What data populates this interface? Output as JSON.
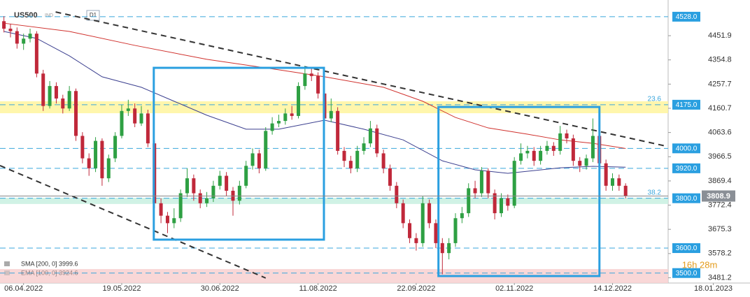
{
  "header": {
    "symbol": "US500",
    "market": "IND",
    "timeframe": "D1",
    "timer": "16h 28m"
  },
  "chart_data": {
    "type": "candlestick",
    "xlim": [
      -0.6,
      101.5
    ],
    "ylim": [
      3460,
      4595
    ],
    "xticks": [
      {
        "value": 3,
        "label": "06.04.2022"
      },
      {
        "value": 18,
        "label": "19.05.2022"
      },
      {
        "value": 33,
        "label": "30.06.2022"
      },
      {
        "value": 48,
        "label": "11.08.2022"
      },
      {
        "value": 63,
        "label": "22.09.2022"
      },
      {
        "value": 78,
        "label": "02.11.2022"
      },
      {
        "value": 93,
        "label": "14.12.2022"
      },
      {
        "value": 108.4,
        "label": "18.01.2023"
      }
    ],
    "yticks": [
      4451.9,
      4354.8,
      4257.7,
      4160.7,
      4063.6,
      3966.5,
      3869.4,
      3772.4,
      3675.3,
      3578.2,
      3481.2
    ],
    "up_color": "#2ea043",
    "down_color": "#c0283a",
    "open": [
      4510,
      4480,
      4470,
      4420,
      4440,
      4460,
      4300,
      4170,
      4250,
      4200,
      4160,
      4230,
      4050,
      3960,
      3920,
      4030,
      3880,
      3960,
      4050,
      4150,
      4160,
      4100,
      4140,
      4020,
      3780,
      3730,
      3700,
      3720,
      3820,
      3880,
      3820,
      3780,
      3800,
      3850,
      3890,
      3830,
      3790,
      3850,
      3930,
      3980,
      3920,
      4070,
      4100,
      4110,
      4140,
      4130,
      4250,
      4300,
      4290,
      4220,
      4120,
      4150,
      3990,
      3950,
      3920,
      3990,
      4020,
      4080,
      3980,
      3920,
      3850,
      3780,
      3700,
      3640,
      3620,
      3780,
      3700,
      3620,
      3580,
      3620,
      3720,
      3740,
      3840,
      3820,
      3910,
      3820,
      3740,
      3800,
      3770,
      3950,
      3980,
      3990,
      3950,
      3990,
      4010,
      3990,
      4060,
      4040,
      3950,
      3930,
      3960,
      4050,
      3940,
      3850,
      3880,
      3850
    ],
    "high": [
      4530,
      4500,
      4485,
      4460,
      4480,
      4470,
      4315,
      4270,
      4265,
      4215,
      4250,
      4240,
      4065,
      3980,
      4045,
      4040,
      3975,
      4065,
      4175,
      4195,
      4180,
      4170,
      4155,
      4030,
      3800,
      3745,
      3760,
      3835,
      3920,
      3895,
      3835,
      3825,
      3870,
      3910,
      3905,
      3845,
      3870,
      3950,
      4000,
      3995,
      4085,
      4125,
      4135,
      4160,
      4170,
      4265,
      4330,
      4320,
      4305,
      4235,
      4200,
      4165,
      4005,
      3970,
      4010,
      4045,
      4110,
      4095,
      3995,
      3935,
      3865,
      3795,
      3715,
      3660,
      3810,
      3795,
      3715,
      3640,
      3640,
      3740,
      3765,
      3860,
      3870,
      3925,
      3920,
      3835,
      3820,
      3815,
      3965,
      4020,
      4010,
      4005,
      4010,
      4030,
      4025,
      4090,
      4075,
      4055,
      3965,
      3975,
      4120,
      4065,
      3955,
      3900,
      3895,
      3860
    ],
    "low": [
      4465,
      4445,
      4400,
      4395,
      4425,
      4285,
      4150,
      4160,
      4180,
      4140,
      4150,
      4030,
      3940,
      3890,
      3905,
      3850,
      3865,
      3945,
      4040,
      4130,
      4085,
      4090,
      4005,
      3760,
      3700,
      3660,
      3680,
      3705,
      3805,
      3790,
      3760,
      3765,
      3785,
      3835,
      3810,
      3730,
      3775,
      3840,
      3915,
      3900,
      3910,
      4055,
      4085,
      4095,
      4115,
      4120,
      4235,
      4270,
      4200,
      4100,
      4105,
      3975,
      3925,
      3900,
      3905,
      3975,
      4005,
      3965,
      3900,
      3830,
      3760,
      3680,
      3620,
      3590,
      3605,
      3680,
      3600,
      3495,
      3555,
      3605,
      3700,
      3725,
      3800,
      3805,
      3800,
      3715,
      3725,
      3750,
      3760,
      3935,
      3960,
      3930,
      3935,
      3975,
      3970,
      3975,
      4020,
      3930,
      3905,
      3915,
      3945,
      3920,
      3830,
      3830,
      3830,
      3800
    ],
    "close": [
      4480,
      4470,
      4420,
      4440,
      4460,
      4300,
      4170,
      4250,
      4200,
      4160,
      4230,
      4050,
      3960,
      3920,
      4030,
      3880,
      3960,
      4050,
      4150,
      4160,
      4100,
      4140,
      4020,
      3780,
      3730,
      3700,
      3720,
      3820,
      3880,
      3820,
      3780,
      3800,
      3850,
      3890,
      3830,
      3790,
      3850,
      3930,
      3980,
      3920,
      4070,
      4100,
      4110,
      4140,
      4130,
      4250,
      4300,
      4290,
      4220,
      4120,
      4150,
      3990,
      3950,
      3920,
      3990,
      4020,
      4080,
      3980,
      3920,
      3850,
      3780,
      3700,
      3640,
      3620,
      3780,
      3700,
      3620,
      3580,
      3620,
      3720,
      3740,
      3840,
      3820,
      3910,
      3820,
      3740,
      3800,
      3770,
      3950,
      3980,
      3990,
      3950,
      3990,
      4010,
      3990,
      4060,
      4040,
      3950,
      3930,
      3960,
      4050,
      3940,
      3850,
      3880,
      3850,
      3808.9
    ],
    "series": [
      {
        "name": "SMA [200, 0]",
        "color": "#d0312d",
        "x": [
          0,
          10,
          20,
          31,
          42,
          49,
          58,
          64,
          69,
          74,
          80,
          85,
          90,
          95
        ],
        "values": [
          4502,
          4469,
          4413,
          4357,
          4315,
          4287,
          4245,
          4189,
          4124,
          4082,
          4057,
          4034,
          4020,
          3999.6
        ]
      },
      {
        "name": "EMA [100, 0]",
        "color": "#3b3f8f",
        "x": [
          0,
          5,
          10,
          15,
          21,
          26,
          31,
          37,
          42,
          49,
          55,
          61,
          67,
          72,
          77,
          85,
          90,
          95
        ],
        "values": [
          4469,
          4441,
          4371,
          4287,
          4245,
          4189,
          4133,
          4077,
          4077,
          4113,
          4077,
          4034,
          3950,
          3914,
          3900,
          3922,
          3928,
          3924.6
        ]
      }
    ],
    "levels": [
      {
        "value": 4528,
        "label": "4528.0"
      },
      {
        "value": 4175,
        "label": "4175.0"
      },
      {
        "value": 4000,
        "label": "4000.0"
      },
      {
        "value": 3920,
        "label": "3920.0"
      },
      {
        "value": 3800,
        "label": "3800.0"
      },
      {
        "value": 3600,
        "label": "3600.0"
      },
      {
        "value": 3500,
        "label": "3500.0"
      }
    ],
    "fibs": [
      {
        "label": "23.6",
        "level": 4175
      },
      {
        "label": "38.2",
        "level": 3800
      }
    ],
    "zones": [
      {
        "from": 4141,
        "to": 4189,
        "color": "#fff59d"
      },
      {
        "from": 3777,
        "to": 3802,
        "color": "#c8f0e0"
      },
      {
        "from": 3460,
        "to": 3516,
        "color": "#f8d0d0"
      }
    ],
    "boxes": [
      {
        "x": [
          22.9,
          48.9
        ],
        "y": [
          3634,
          4323
        ]
      },
      {
        "x": [
          66.4,
          91.0
        ],
        "y": [
          3488,
          4166
        ]
      }
    ],
    "trendlines": [
      {
        "x": [
          7.9,
          101
        ],
        "y": [
          4547,
          4010
        ]
      },
      {
        "x": [
          -0.6,
          40
        ],
        "y": [
          3931,
          3480
        ]
      }
    ]
  }
}
